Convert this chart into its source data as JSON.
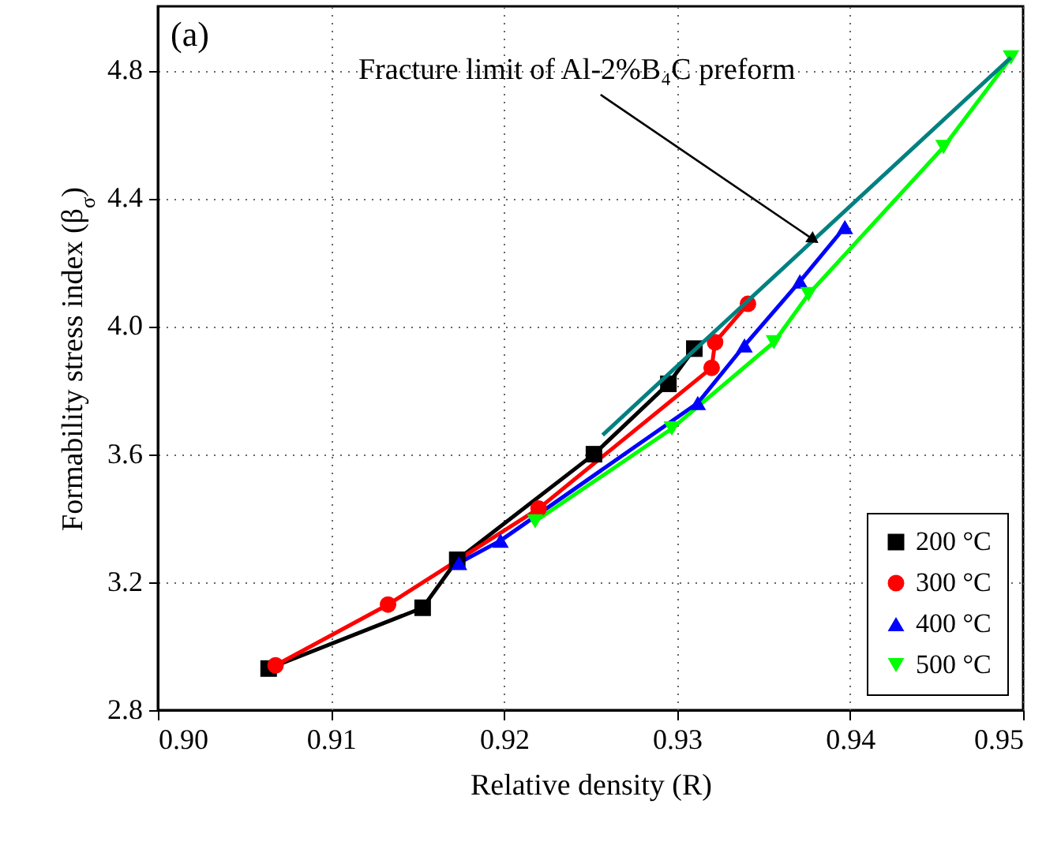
{
  "chart_data": {
    "type": "line",
    "xlabel": "Relative density (R)",
    "ylabel": "Formability stress index (β$_{σ}$)",
    "xlim": [
      0.9,
      0.95
    ],
    "ylim": [
      2.8,
      5.0
    ],
    "xticks": [
      {
        "value": 0.9,
        "label": "0.90"
      },
      {
        "value": 0.91,
        "label": "0.91"
      },
      {
        "value": 0.92,
        "label": "0.92"
      },
      {
        "value": 0.93,
        "label": "0.93"
      },
      {
        "value": 0.94,
        "label": "0.94"
      },
      {
        "value": 0.95,
        "label": "0.95"
      }
    ],
    "yticks": [
      2.8,
      3.2,
      3.6,
      {
        "value": 4.0,
        "label": "4.0"
      },
      4.4,
      4.8
    ],
    "grid": true,
    "legend": "bottom right",
    "annotations": [
      "(a)",
      {
        "text": "Fracture limit of Al-2%B₄C preform",
        "x": 0.9379,
        "y": 4.27
      }
    ],
    "series": [
      {
        "name": "200 °C",
        "color": "#000000",
        "marker": "square",
        "x": [
          0.9064,
          0.9153,
          0.9173,
          0.9252,
          0.9295,
          0.931
        ],
        "values": [
          2.93,
          3.12,
          3.27,
          3.6,
          3.82,
          3.93
        ]
      },
      {
        "name": "300 °C",
        "color": "#ff0000",
        "marker": "circle",
        "x": [
          0.9068,
          0.9133,
          0.922,
          0.932,
          0.9322,
          0.9341
        ],
        "values": [
          2.94,
          3.13,
          3.43,
          3.87,
          3.95,
          4.07
        ]
      },
      {
        "name": "400 °C",
        "color": "#0000ff",
        "marker": "triangle",
        "x": [
          0.9174,
          0.9198,
          0.9312,
          0.9339,
          0.9371,
          0.9397
        ],
        "values": [
          3.26,
          3.33,
          3.76,
          3.94,
          4.14,
          4.31
        ]
      },
      {
        "name": "500 °C",
        "color": "#00ff00",
        "marker": "triangle-down",
        "x": [
          0.9218,
          0.9297,
          0.9356,
          0.9376,
          0.9454,
          0.9493
        ],
        "values": [
          3.39,
          3.68,
          3.95,
          4.1,
          4.56,
          4.84
        ]
      },
      {
        "color": "#008080",
        "marker": "none",
        "x": [
          0.9257,
          0.9493
        ],
        "values": [
          3.66,
          4.84
        ]
      }
    ]
  }
}
